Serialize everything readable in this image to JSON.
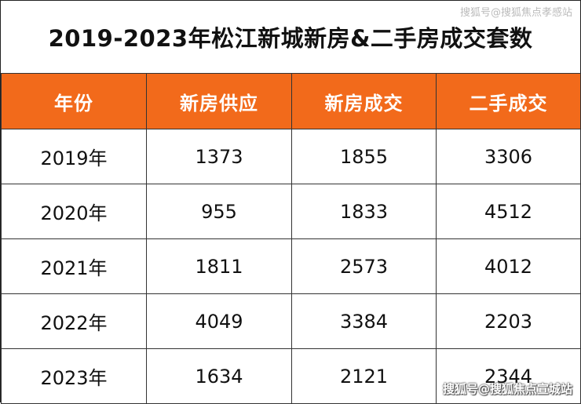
{
  "title": "2019-2023年松江新城新房&二手房成交套数",
  "watermark_top": "搜狐号@搜狐焦点孝感站",
  "watermark_bottom": "搜狐号@搜狐焦点宣城站",
  "colors": {
    "header_bg": "#f26a1b",
    "header_text": "#ffffff"
  },
  "table": {
    "headers": [
      "年份",
      "新房供应",
      "新房成交",
      "二手成交"
    ],
    "rows": [
      [
        "2019年",
        "1373",
        "1855",
        "3306"
      ],
      [
        "2020年",
        "955",
        "1833",
        "4512"
      ],
      [
        "2021年",
        "1811",
        "2573",
        "4012"
      ],
      [
        "2022年",
        "4049",
        "3384",
        "2203"
      ],
      [
        "2023年",
        "1634",
        "2121",
        "2344"
      ]
    ]
  }
}
